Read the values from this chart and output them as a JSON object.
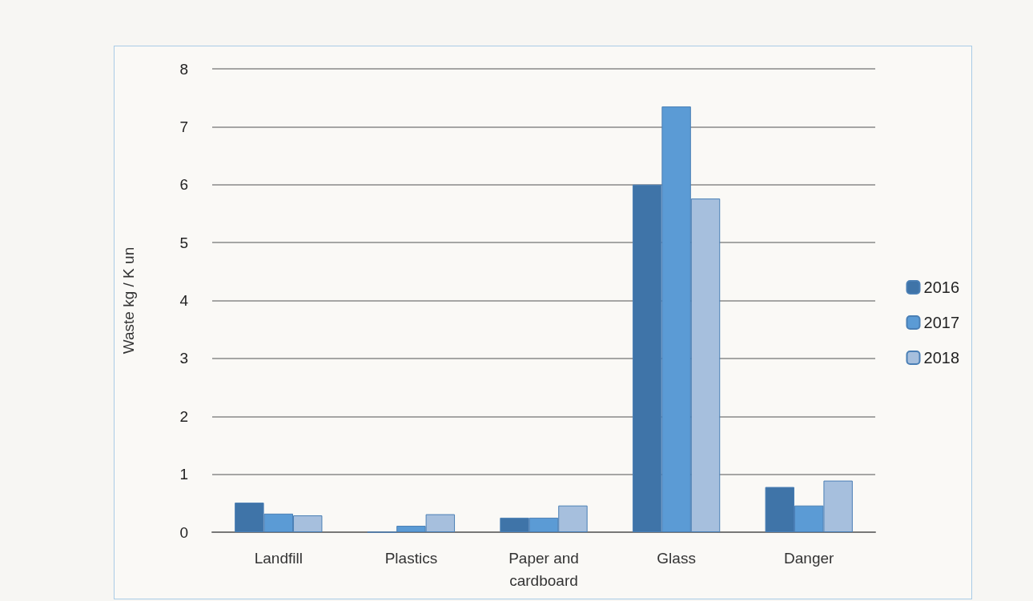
{
  "chart_data": {
    "type": "bar",
    "ylabel": "Waste kg / K un",
    "categories": [
      "Landfill",
      "Plastics",
      "Paper and\ncardboard",
      "Glass",
      "Danger"
    ],
    "series": [
      {
        "name": "2016",
        "color": "#3f74a8",
        "values": [
          0.51,
          0,
          0.25,
          6.0,
          0.78
        ]
      },
      {
        "name": "2017",
        "color": "#5b9bd5",
        "values": [
          0.32,
          0.11,
          0.25,
          7.35,
          0.46
        ]
      },
      {
        "name": "2018",
        "color": "#a6bfdd",
        "values": [
          0.29,
          0.31,
          0.46,
          5.76,
          0.89
        ]
      }
    ],
    "ylim": [
      0,
      8
    ],
    "yticks": [
      0,
      1,
      2,
      3,
      4,
      5,
      6,
      7,
      8
    ],
    "grid": "y",
    "legend": "right"
  }
}
